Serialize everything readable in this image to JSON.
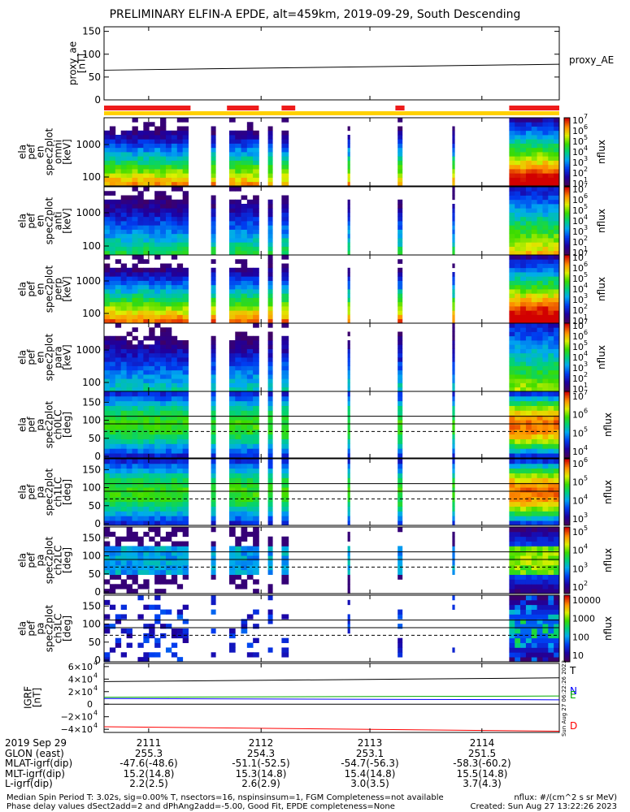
{
  "title": "PRELIMINARY ELFIN-A EPDE, alt=459km, 2019-09-29, South Descending",
  "ae_panel": {
    "ylabel_lines": [
      "proxy_ae",
      "[nT]"
    ],
    "yticks": [
      0,
      50,
      100,
      150
    ],
    "ylim": [
      0,
      160
    ],
    "series_label": "proxy_AE"
  },
  "spec_panels": [
    {
      "ylabel_lines": [
        "ela",
        "pef",
        "en",
        "spec2plot",
        "omni",
        "[keV]"
      ],
      "yticks": [
        "100",
        "1000"
      ],
      "cbar_ticks": [
        "10",
        "10",
        "10",
        "10",
        "10",
        "10",
        "10"
      ],
      "cbar_exps": [
        "1",
        "2",
        "3",
        "4",
        "5",
        "6",
        "7"
      ],
      "cbar_label": "nflux"
    },
    {
      "ylabel_lines": [
        "ela",
        "pef",
        "en",
        "spec2plot",
        "anti",
        "[keV]"
      ],
      "yticks": [
        "100",
        "1000"
      ],
      "cbar_ticks": [
        "10",
        "10",
        "10",
        "10",
        "10",
        "10",
        "10"
      ],
      "cbar_exps": [
        "1",
        "2",
        "3",
        "4",
        "5",
        "6",
        "7"
      ],
      "cbar_label": "nflux"
    },
    {
      "ylabel_lines": [
        "ela",
        "pef",
        "en",
        "spec2plot",
        "perp",
        "[keV]"
      ],
      "yticks": [
        "100",
        "1000"
      ],
      "cbar_ticks": [
        "10",
        "10",
        "10",
        "10",
        "10",
        "10",
        "10"
      ],
      "cbar_exps": [
        "1",
        "2",
        "3",
        "4",
        "5",
        "6",
        "7"
      ],
      "cbar_label": "nflux"
    },
    {
      "ylabel_lines": [
        "ela",
        "pef",
        "en",
        "spec2plot",
        "para",
        "[keV]"
      ],
      "yticks": [
        "100",
        "1000"
      ],
      "cbar_ticks": [
        "10",
        "10",
        "10",
        "10",
        "10",
        "10",
        "10"
      ],
      "cbar_exps": [
        "1",
        "2",
        "3",
        "4",
        "5",
        "6",
        "7"
      ],
      "cbar_label": "nflux"
    }
  ],
  "pa_panels": [
    {
      "ylabel_lines": [
        "ela",
        "pef",
        "pa",
        "spec2plot",
        "ch0LC",
        "[deg]"
      ],
      "yticks": [
        0,
        50,
        100,
        150
      ],
      "cbar_ticks": [
        "10",
        "10",
        "10",
        "10"
      ],
      "cbar_exps": [
        "4",
        "5",
        "6",
        "7"
      ],
      "cbar_label": "nflux"
    },
    {
      "ylabel_lines": [
        "ela",
        "pef",
        "pa",
        "spec2plot",
        "ch1LC",
        "[deg]"
      ],
      "yticks": [
        0,
        50,
        100,
        150
      ],
      "cbar_ticks": [
        "10",
        "10",
        "10",
        "10"
      ],
      "cbar_exps": [
        "3",
        "4",
        "5",
        "6"
      ],
      "cbar_label": "nflux"
    },
    {
      "ylabel_lines": [
        "ela",
        "pef",
        "pa",
        "spec2plot",
        "ch2LC",
        "[deg]"
      ],
      "yticks": [
        0,
        50,
        100,
        150
      ],
      "cbar_ticks": [
        "10",
        "10",
        "10",
        "10"
      ],
      "cbar_exps": [
        "2",
        "3",
        "4",
        "5"
      ],
      "cbar_label": "nflux"
    },
    {
      "ylabel_lines": [
        "ela",
        "pef",
        "pa",
        "spec2plot",
        "ch3LC",
        "[deg]"
      ],
      "yticks": [
        0,
        50,
        100,
        150
      ],
      "cbar_ticks": [
        "10",
        "100",
        "1000",
        "10000"
      ],
      "cbar_exps": [
        "",
        "",
        "",
        ""
      ],
      "cbar_label": "nflux"
    }
  ],
  "igrf_panel": {
    "ylabel_lines": [
      "IGRF",
      "[nT]"
    ],
    "ytick_mants": [
      "−4×10",
      "−2×10",
      "0",
      "2×10",
      "4×10",
      "6×10"
    ],
    "ytick_exps": [
      "4",
      "4",
      "",
      "4",
      "4",
      "4"
    ],
    "legend": [
      "T",
      "N",
      "E",
      "D"
    ],
    "legend_colors": [
      "#000000",
      "#0000ff",
      "#00aa00",
      "#ff0000"
    ],
    "side_text": "Sun Aug 27 06:22:26 2023"
  },
  "table": {
    "date": "2019 Sep 29",
    "rows": [
      "GLON (east)",
      "MLAT-igrf(dip)",
      "MLT-igrf(dip)",
      "L-igrf(dip)"
    ],
    "columns": [
      {
        "time": "2111",
        "glon": "255.3",
        "mlat": "-47.6(-48.6)",
        "mlt": "15.2(14.8)",
        "l": "2.2(2.5)"
      },
      {
        "time": "2112",
        "glon": "254.3",
        "mlat": "-51.1(-52.5)",
        "mlt": "15.3(14.8)",
        "l": "2.6(2.9)"
      },
      {
        "time": "2113",
        "glon": "253.1",
        "mlat": "-54.7(-56.3)",
        "mlt": "15.4(14.8)",
        "l": "3.0(3.5)"
      },
      {
        "time": "2114",
        "glon": "251.5",
        "mlat": "-58.3(-60.2)",
        "mlt": "15.5(14.8)",
        "l": "3.7(4.3)"
      }
    ]
  },
  "footer": {
    "line1": "Median Spin Period T: 3.02s, sig=0.00% T, nsectors=16, nspinsinsum=1, FGM Completeness=not available",
    "line2": "Phase delay values dSect2add=2 and dPhAng2add=-5.00, Good Fit, EPDE completeness=None",
    "unit": "nflux: #/(cm^2 s sr MeV)",
    "created": "Created: Sun Aug 27 13:22:26 2023"
  },
  "chart_data": {
    "type": "heatmap",
    "x_axis": "UT (hhmm)",
    "x_ticks": [
      "2111",
      "2112",
      "2113",
      "2114"
    ],
    "ae_proxy_nT": {
      "start": 65,
      "end": 78
    },
    "coverage_bars": {
      "red": [
        [
          0.0,
          0.19
        ],
        [
          0.27,
          0.34
        ],
        [
          0.39,
          0.42
        ],
        [
          0.64,
          0.66
        ],
        [
          0.89,
          1.0
        ]
      ],
      "yellow": [
        [
          0.0,
          1.0
        ]
      ]
    },
    "data_segments": [
      [
        0.0,
        0.185
      ],
      [
        0.235,
        0.245
      ],
      [
        0.275,
        0.34
      ],
      [
        0.36,
        0.37
      ],
      [
        0.39,
        0.405
      ],
      [
        0.535,
        0.54
      ],
      [
        0.645,
        0.655
      ],
      [
        0.765,
        0.77
      ],
      [
        0.89,
        1.0
      ]
    ],
    "igrf_components_nT": [
      {
        "name": "T",
        "start": 36000,
        "end": 42000
      },
      {
        "name": "N",
        "start": 9000,
        "end": 7000
      },
      {
        "name": "E",
        "start": 11000,
        "end": 13000
      },
      {
        "name": "D",
        "start": -36000,
        "end": -43000
      }
    ]
  }
}
